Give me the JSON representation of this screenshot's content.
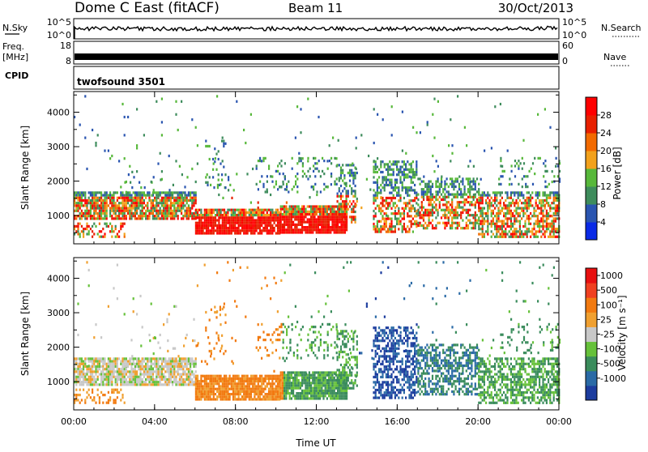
{
  "header": {
    "station": "Dome C East (fitACF)",
    "beam": "Beam 11",
    "date": "30/Oct/2013"
  },
  "strips": {
    "nsky": {
      "label": "N.Sky",
      "ticks_left": [
        "10^5",
        "10^0"
      ],
      "ticks_right": [
        "10^5",
        "10^0"
      ],
      "right_label": "N.Search"
    },
    "freq": {
      "label_top": "Freq.",
      "label_unit": "[MHz]",
      "ticks_left": [
        "18",
        "8"
      ],
      "ticks_right": [
        "60",
        "0"
      ],
      "right_label": "Nave"
    },
    "cpid": {
      "label": "CPID",
      "program": "twofsound 3501"
    }
  },
  "chart_data": [
    {
      "type": "heatmap",
      "name": "power",
      "ylabel": "Slant Range [km]",
      "xlabel": "",
      "ylim": [
        180,
        4600
      ],
      "y_ticks": [
        1000,
        2000,
        3000,
        4000
      ],
      "colorbar": {
        "title": "Power [dB]",
        "ticks": [
          "4",
          "8",
          "12",
          "16",
          "20",
          "24",
          "28"
        ],
        "colors": [
          "#0a2ae6",
          "#2a55b0",
          "#3e8c5c",
          "#57b83a",
          "#f2a11c",
          "#f26a00",
          "#e82000",
          "#ff0000"
        ]
      }
    },
    {
      "type": "heatmap",
      "name": "velocity",
      "ylabel": "Slant Range [km]",
      "xlabel": "Time UT",
      "ylim": [
        180,
        4600
      ],
      "y_ticks": [
        1000,
        2000,
        3000,
        4000
      ],
      "colorbar": {
        "title": "Velocity  [m s⁻¹]",
        "ticks": [
          "1000",
          "500",
          "100",
          "25",
          "-25",
          "-100",
          "-500",
          "-1000"
        ],
        "colors": [
          "#1c3c9e",
          "#2a6aa6",
          "#3a8c5c",
          "#66c13a",
          "#c8c8c8",
          "#f0a030",
          "#f27a10",
          "#f04020",
          "#e81010"
        ]
      }
    }
  ],
  "time_axis": {
    "title": "Time UT",
    "ticks": [
      "00:00",
      "04:00",
      "08:00",
      "12:00",
      "16:00",
      "20:00",
      "00:00"
    ]
  }
}
